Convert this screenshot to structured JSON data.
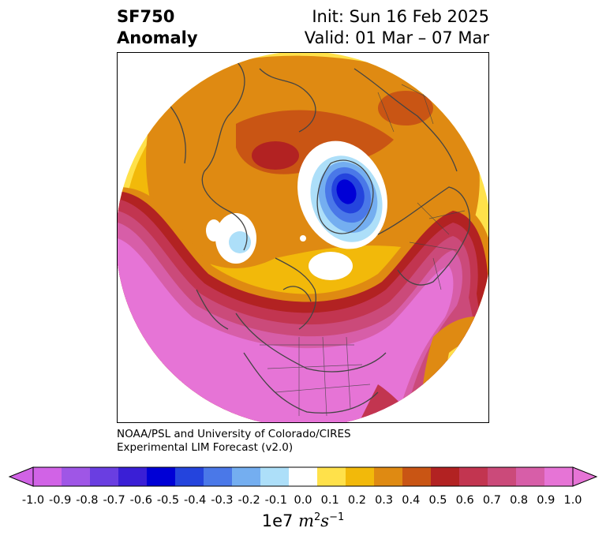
{
  "title": {
    "left_line1": "SF750",
    "left_line2": "Anomaly",
    "right_line1": "Init: Sun 16 Feb 2025",
    "right_line2": "Valid: 01 Mar – 07 Mar"
  },
  "credit": {
    "line1": "NOAA/PSL and University of Colorado/CIRES",
    "line2": "Experimental LIM Forecast (v2.0)"
  },
  "colorbar": {
    "label_prefix": "1e7",
    "label_unit_m": "m",
    "label_exp1": "2",
    "label_unit_s": "s",
    "label_exp2": "−1",
    "ticks": [
      "-1.0",
      "-0.9",
      "-0.8",
      "-0.7",
      "-0.6",
      "-0.5",
      "-0.4",
      "-0.3",
      "-0.2",
      "-0.1",
      "0.0",
      "0.1",
      "0.2",
      "0.3",
      "0.4",
      "0.5",
      "0.6",
      "0.7",
      "0.8",
      "0.9",
      "1.0"
    ],
    "colors": [
      "#d163e6",
      "#9f56e6",
      "#6a3ee1",
      "#3a1fd6",
      "#0000d6",
      "#2444dd",
      "#4a78e8",
      "#74aef0",
      "#addff9",
      "#ffffff",
      "#ffe14a",
      "#f2b90a",
      "#df8a12",
      "#c95514",
      "#b22222",
      "#c23550",
      "#cb4a7a",
      "#d75ea8",
      "#e674d6"
    ],
    "under_color": "#d163e6",
    "over_color": "#e674d6"
  },
  "map": {
    "projection": "north-polar-stereographic",
    "coastline_color": "#444444",
    "features": [
      "positive anomaly over Arctic and North Pacific",
      "negative anomaly over northern Europe / Scandinavia",
      "strong positive anomaly over North America and eastern Pacific"
    ]
  }
}
